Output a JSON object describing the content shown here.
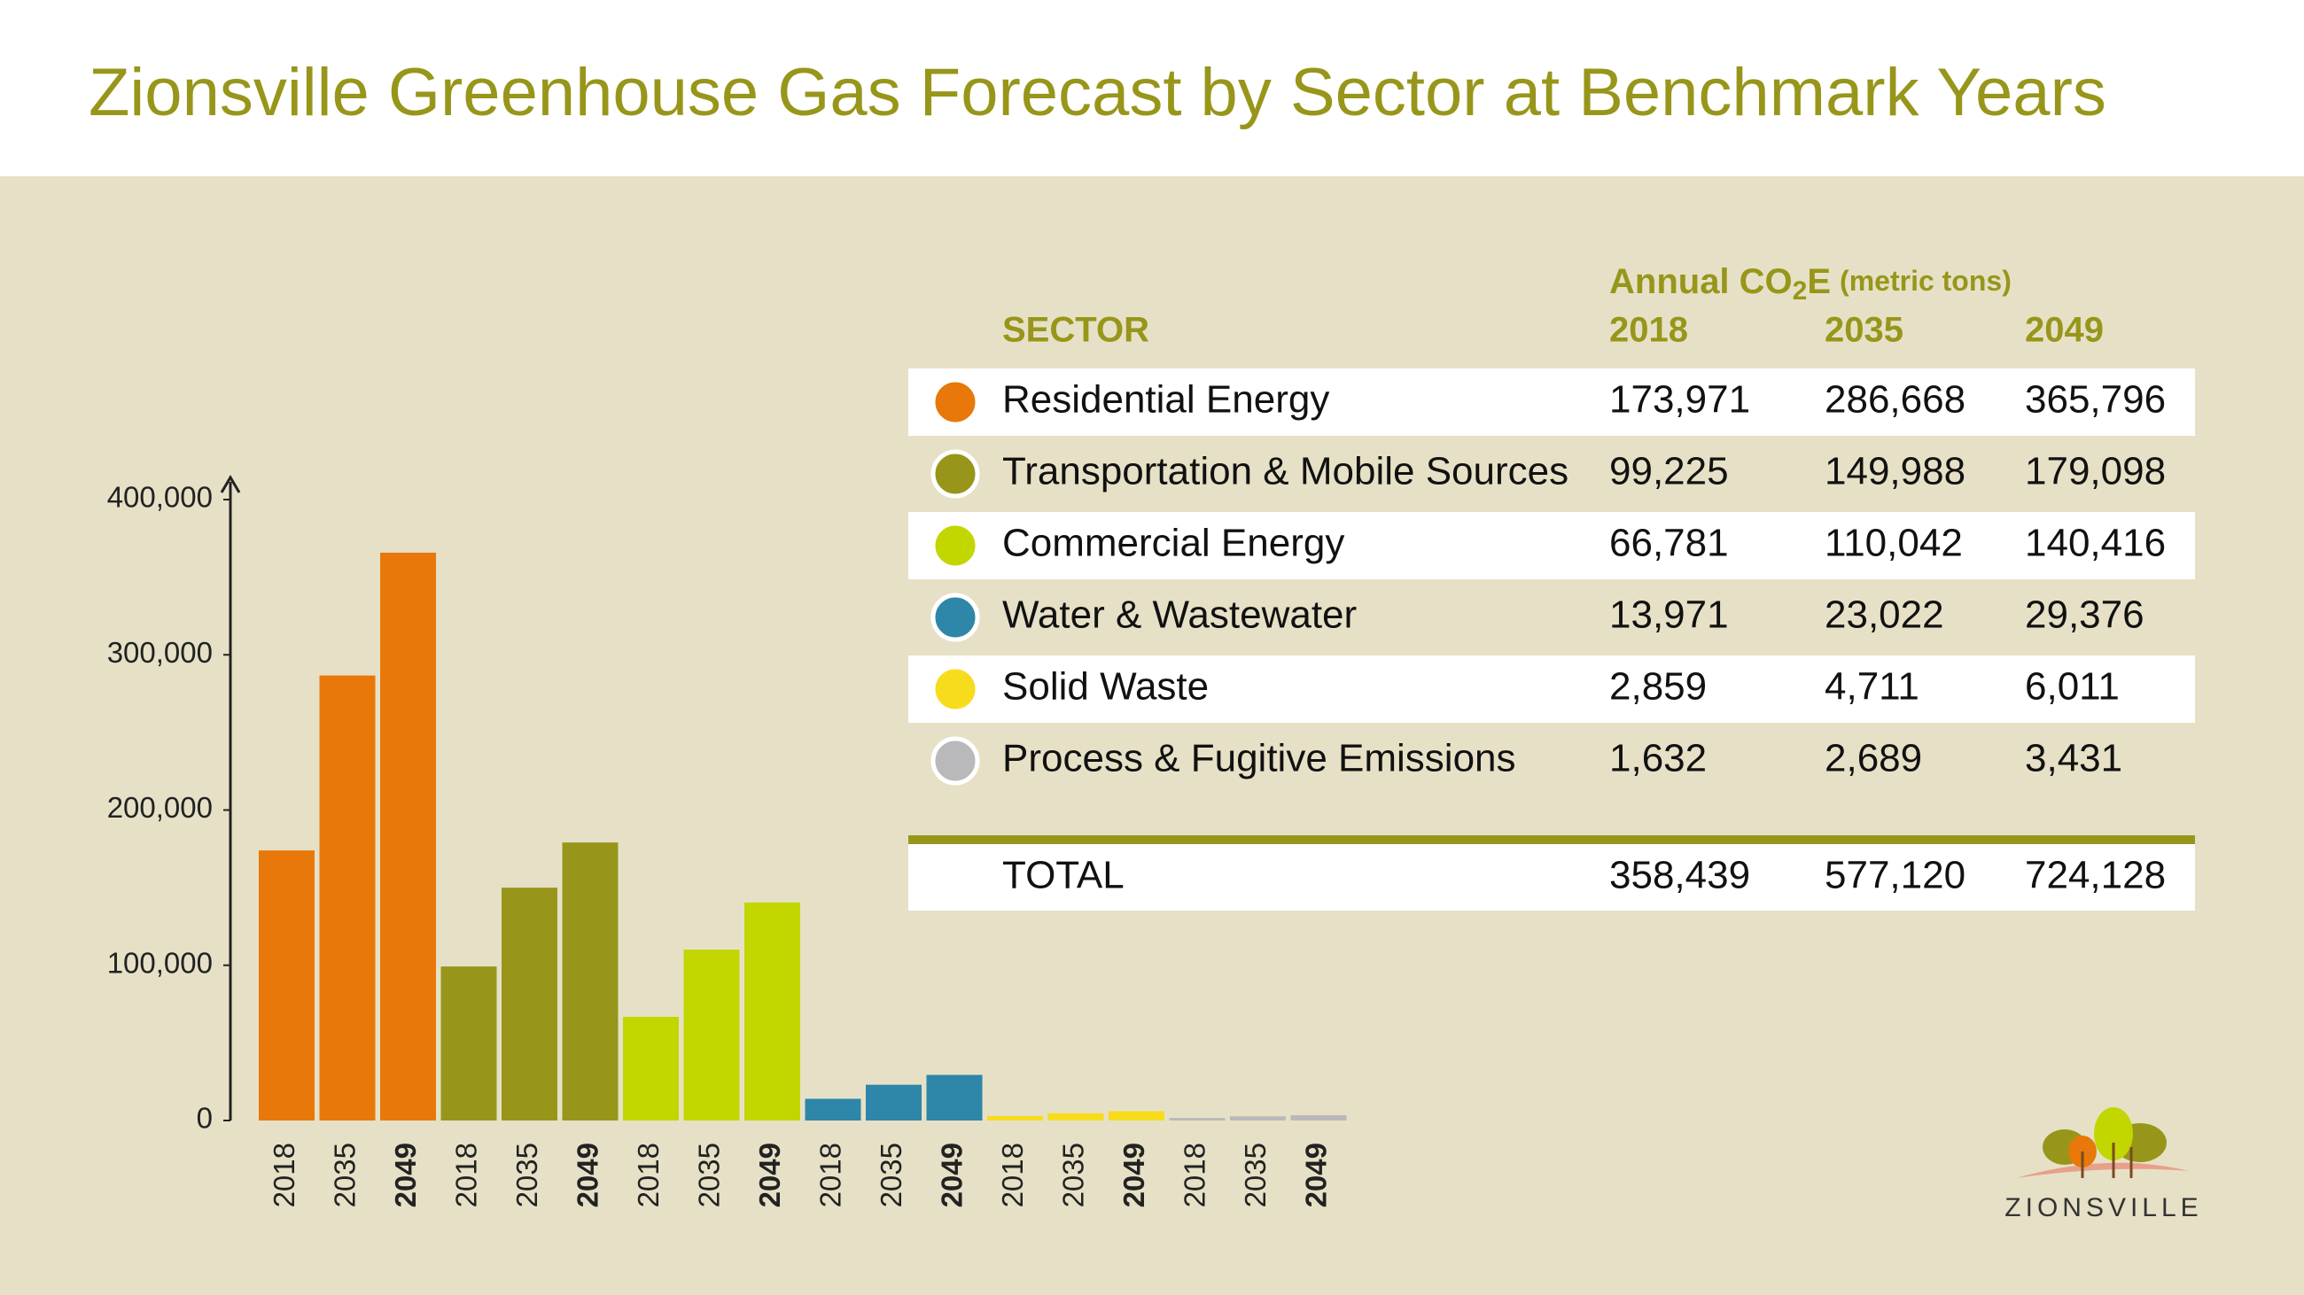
{
  "chart_data": {
    "type": "bar",
    "title": "Zionsville Greenhouse Gas Forecast by Sector at Benchmark Years",
    "categories": [
      "2018",
      "2035",
      "2049"
    ],
    "ylim": [
      0,
      400000
    ],
    "yticks": [
      {
        "value": 0,
        "label": "0"
      },
      {
        "value": 100000,
        "label": "100,000"
      },
      {
        "value": 200000,
        "label": "200,000"
      },
      {
        "value": 300000,
        "label": "300,000"
      },
      {
        "value": 400000,
        "label": "400,000"
      }
    ],
    "series": [
      {
        "name": "Residential Energy",
        "color": "#e8780a",
        "values": [
          173971,
          286668,
          365796
        ],
        "value_labels": [
          "173,971",
          "286,668",
          "365,796"
        ]
      },
      {
        "name": "Transportation & Mobile Sources",
        "color": "#98961a",
        "values": [
          99225,
          149988,
          179098
        ],
        "value_labels": [
          "99,225",
          "149,988",
          "179,098"
        ]
      },
      {
        "name": "Commercial Energy",
        "color": "#c2d600",
        "values": [
          66781,
          110042,
          140416
        ],
        "value_labels": [
          "66,781",
          "110,042",
          "140,416"
        ]
      },
      {
        "name": "Water & Wastewater",
        "color": "#2e86a8",
        "values": [
          13971,
          23022,
          29376
        ],
        "value_labels": [
          "13,971",
          "23,022",
          "29,376"
        ]
      },
      {
        "name": "Solid Waste",
        "color": "#f7dc1e",
        "values": [
          2859,
          4711,
          6011
        ],
        "value_labels": [
          "2,859",
          "4,711",
          "6,011"
        ]
      },
      {
        "name": "Process & Fugitive Emissions",
        "color": "#b9b9bb",
        "values": [
          1632,
          2689,
          3431
        ],
        "value_labels": [
          "1,632",
          "2,689",
          "3,431"
        ]
      }
    ]
  },
  "table": {
    "sector_header": "SECTOR",
    "unit_header_prefix": "Annual CO",
    "unit_header_sub": "2",
    "unit_header_suffix": "E",
    "unit_header_note": "(metric tons)",
    "total_label": "TOTAL",
    "totals": [
      "358,439",
      "577,120",
      "724,128"
    ]
  },
  "logo": {
    "text": "ZIONSVILLE"
  }
}
